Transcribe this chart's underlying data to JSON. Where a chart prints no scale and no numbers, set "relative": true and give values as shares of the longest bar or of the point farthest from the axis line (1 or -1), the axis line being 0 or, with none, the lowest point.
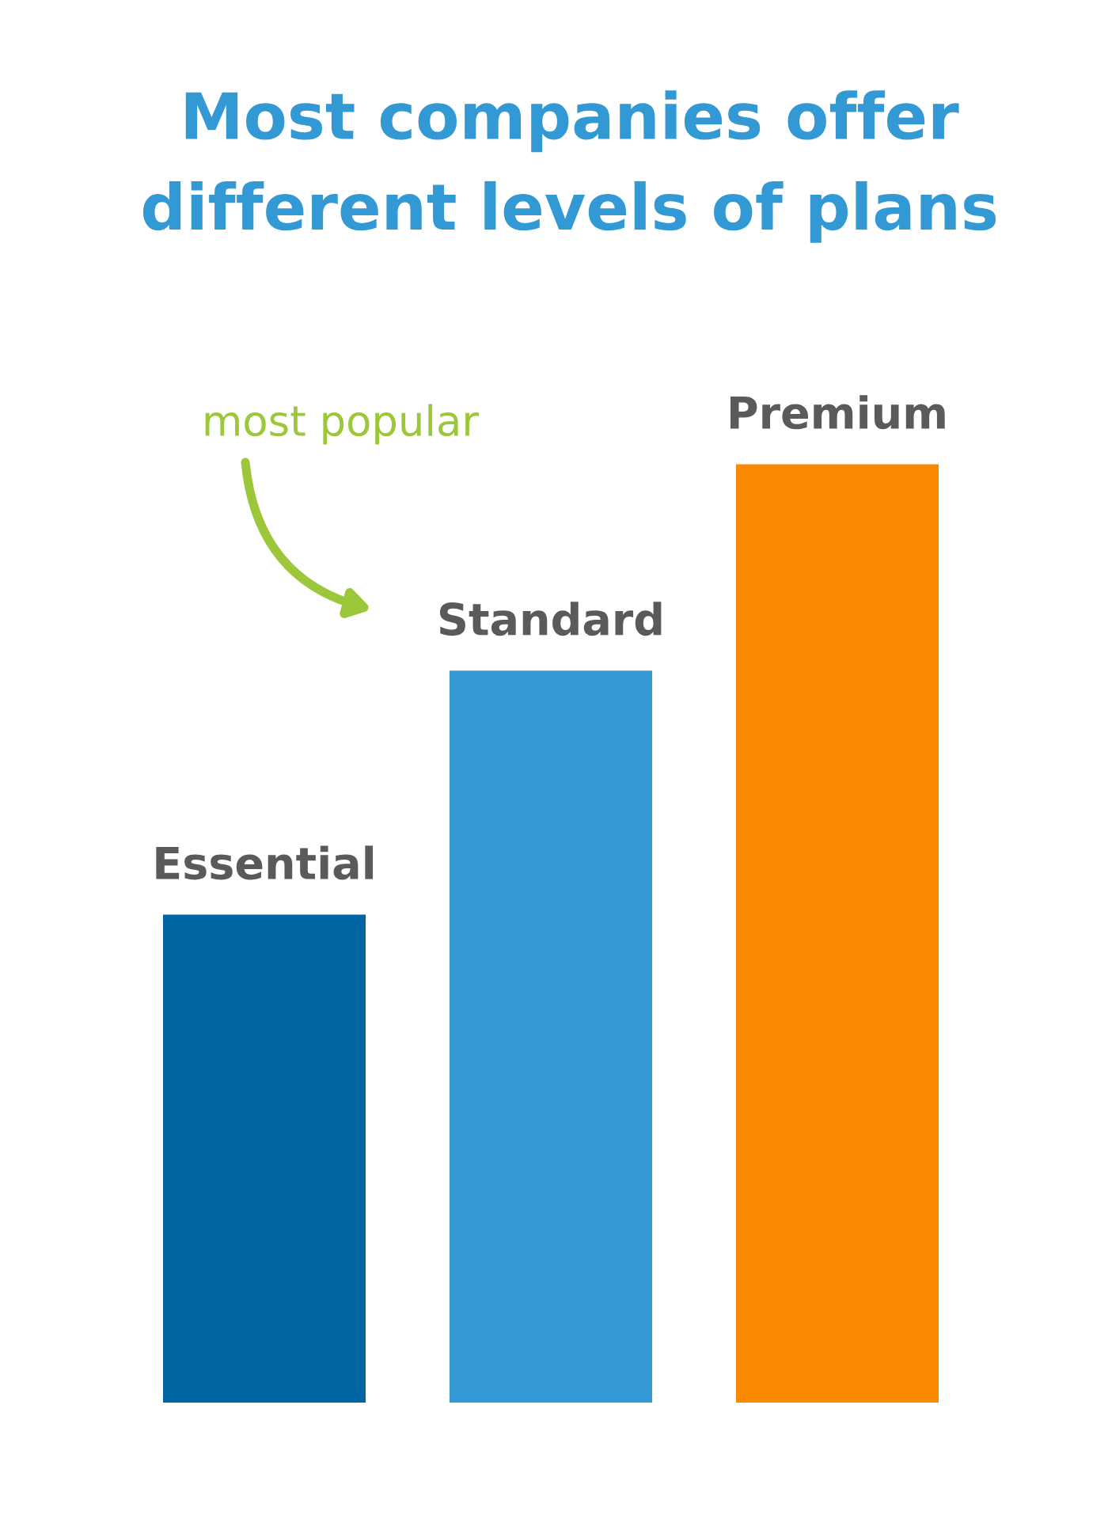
{
  "chart_data": {
    "type": "bar",
    "title": "Most companies offer\ndifferent levels of plans",
    "relative": true,
    "categories": [
      "Essential",
      "Standard",
      "Premium"
    ],
    "values": [
      0.52,
      0.78,
      1
    ],
    "colors": [
      "#0066a1",
      "#3399d4",
      "#fb8900"
    ],
    "annotations": [
      "most popular"
    ]
  }
}
